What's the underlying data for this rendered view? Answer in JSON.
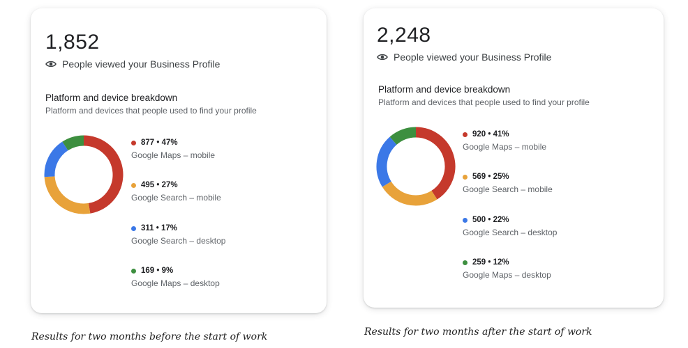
{
  "chart_data": [
    {
      "type": "pie",
      "total": "1,852",
      "subtitle": "People viewed your Business Profile",
      "section_title": "Platform and device breakdown",
      "section_subtitle": "Platform and devices that people used to find your profile",
      "caption": "Results for two months before the start of work",
      "slices": [
        {
          "label": "Google Maps – mobile",
          "value": 877,
          "value_text": "877 • 47%",
          "color": "#c5392c"
        },
        {
          "label": "Google Search – mobile",
          "value": 495,
          "value_text": "495 • 27%",
          "color": "#e8a23a"
        },
        {
          "label": "Google Search – desktop",
          "value": 311,
          "value_text": "311 • 17%",
          "color": "#3b78e7"
        },
        {
          "label": "Google Maps – desktop",
          "value": 169,
          "value_text": "169 • 9%",
          "color": "#3d8f3f"
        }
      ]
    },
    {
      "type": "pie",
      "total": "2,248",
      "subtitle": "People viewed your Business Profile",
      "section_title": "Platform and device breakdown",
      "section_subtitle": "Platform and devices that people used to find your profile",
      "caption": "Results for two months after the start of work",
      "slices": [
        {
          "label": "Google Maps – mobile",
          "value": 920,
          "value_text": "920 • 41%",
          "color": "#c5392c"
        },
        {
          "label": "Google Search – mobile",
          "value": 569,
          "value_text": "569 • 25%",
          "color": "#e8a23a"
        },
        {
          "label": "Google Search – desktop",
          "value": 500,
          "value_text": "500 • 22%",
          "color": "#3b78e7"
        },
        {
          "label": "Google Maps – desktop",
          "value": 259,
          "value_text": "259 • 12%",
          "color": "#3d8f3f"
        }
      ]
    }
  ]
}
